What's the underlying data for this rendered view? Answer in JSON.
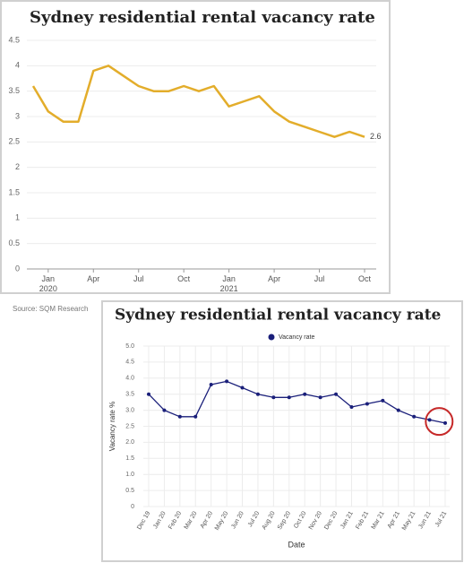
{
  "chart_data": [
    {
      "type": "line",
      "title": "Sydney residential rental vacancy rate",
      "source": "Source: SQM Research",
      "categories": [
        null,
        "Jan 2020",
        null,
        null,
        "Apr",
        null,
        null,
        "Jul",
        null,
        null,
        "Oct",
        null,
        null,
        "Jan 2021",
        null,
        null,
        "Apr",
        null,
        null,
        "Jul",
        null,
        null,
        "Oct"
      ],
      "series": [
        {
          "name": "Vacancy rate",
          "color": "#e3ad2b",
          "values": [
            3.6,
            3.1,
            2.9,
            2.9,
            3.9,
            4.0,
            3.8,
            3.6,
            3.5,
            3.5,
            3.6,
            3.5,
            3.6,
            3.2,
            3.3,
            3.4,
            3.1,
            2.9,
            2.8,
            2.7,
            2.6,
            2.7,
            2.6
          ]
        }
      ],
      "label_last": true,
      "ylim": [
        0,
        4.5
      ],
      "yticks": [
        0,
        0.5,
        1,
        1.5,
        2,
        2.5,
        3,
        3.5,
        4,
        4.5
      ],
      "grid": true,
      "markers": false,
      "legend": false
    },
    {
      "type": "line",
      "title": "Sydney residential rental vacancy rate",
      "x_label": "Date",
      "y_label": "Vacancy rate %",
      "categories": [
        "Dec 19",
        "Jan 20",
        "Feb 20",
        "Mar 20",
        "Apr 20",
        "May 20",
        "Jun 20",
        "Jul 20",
        "Aug 20",
        "Sep 20",
        "Oct 20",
        "Nov 20",
        "Dec 20",
        "Jan 21",
        "Feb 21",
        "Mar 21",
        "Apr 21",
        "May 21",
        "Jun 21",
        "Jul 21"
      ],
      "series": [
        {
          "name": "Vacancy rate",
          "color": "#1a1f7a",
          "values": [
            3.5,
            3.0,
            2.8,
            2.8,
            3.8,
            3.9,
            3.7,
            3.5,
            3.4,
            3.4,
            3.5,
            3.4,
            3.5,
            3.1,
            3.2,
            3.3,
            3.0,
            2.8,
            2.7,
            2.6
          ]
        }
      ],
      "label_last": false,
      "ylim": [
        0,
        5
      ],
      "yticks": [
        0,
        0.5,
        {
          "value": 1,
          "label": "1.0"
        },
        1.5,
        {
          "value": 2,
          "label": "2.0"
        },
        2.5,
        {
          "value": 3,
          "label": "3.0"
        },
        3.5,
        {
          "value": 4,
          "label": "4.0"
        },
        4.5,
        {
          "value": 5,
          "label": "5.0"
        }
      ],
      "grid": true,
      "markers": true,
      "legend": "top"
    }
  ]
}
